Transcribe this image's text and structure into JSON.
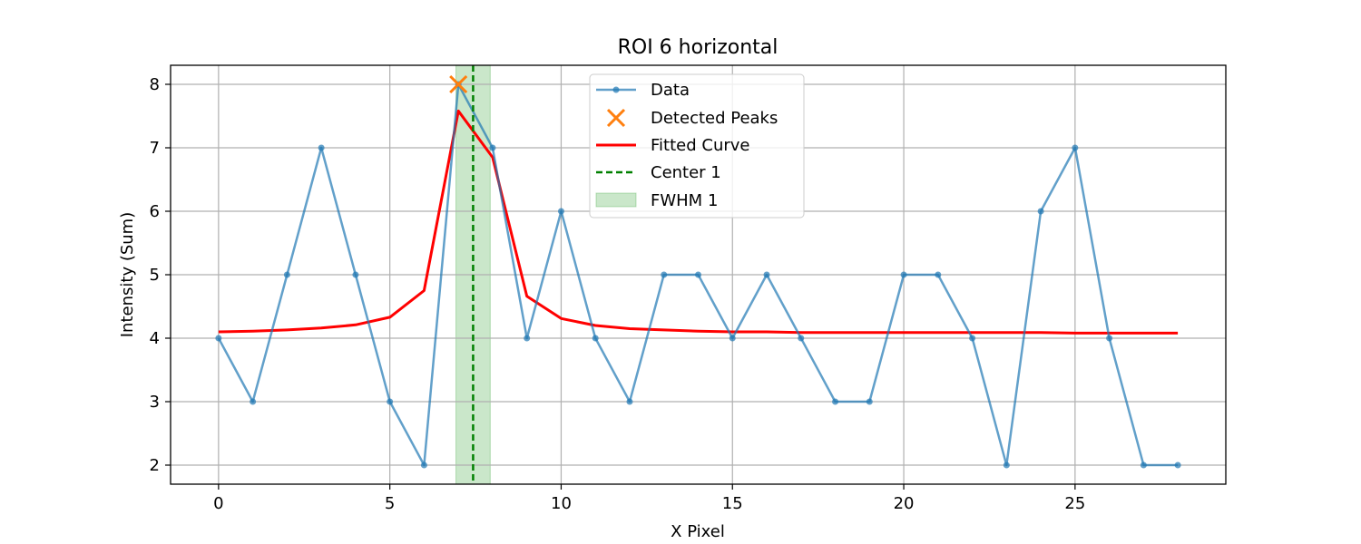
{
  "chart_data": {
    "type": "line",
    "title": "ROI 6 horizontal",
    "xlabel": "X Pixel",
    "ylabel": "Intensity (Sum)",
    "xlim": [
      -1.4,
      29.4
    ],
    "ylim": [
      1.7,
      8.3
    ],
    "xticks": [
      0,
      5,
      10,
      15,
      20,
      25
    ],
    "yticks": [
      2,
      3,
      4,
      5,
      6,
      7,
      8
    ],
    "grid": true,
    "legend_position": "top-center",
    "legend": [
      "Data",
      "Detected Peaks",
      "Fitted Curve",
      "Center 1",
      "FWHM 1"
    ],
    "colors": {
      "data": "#1f77b4",
      "peaks": "#ff7f0e",
      "fit": "#ff0000",
      "center": "#008000",
      "fwhm": "#2ca02c"
    },
    "series": [
      {
        "name": "Data",
        "x": [
          0,
          1,
          2,
          3,
          4,
          5,
          6,
          7,
          8,
          9,
          10,
          11,
          12,
          13,
          14,
          15,
          16,
          17,
          18,
          19,
          20,
          21,
          22,
          23,
          24,
          25,
          26,
          27,
          28
        ],
        "y": [
          4,
          3,
          5,
          7,
          5,
          3,
          2,
          8,
          7,
          4,
          6,
          4,
          3,
          5,
          5,
          4,
          5,
          4,
          3,
          3,
          5,
          5,
          4,
          2,
          6,
          7,
          4,
          2,
          2
        ]
      },
      {
        "name": "Detected Peaks",
        "x": [
          7
        ],
        "y": [
          8
        ]
      },
      {
        "name": "Fitted Curve",
        "x": [
          0,
          1,
          2,
          3,
          4,
          5,
          6,
          7,
          8,
          9,
          10,
          11,
          12,
          13,
          14,
          15,
          16,
          17,
          18,
          19,
          20,
          21,
          22,
          23,
          24,
          25,
          26,
          27,
          28
        ],
        "y": [
          4.1,
          4.11,
          4.13,
          4.16,
          4.21,
          4.33,
          4.75,
          7.58,
          6.85,
          4.66,
          4.31,
          4.2,
          4.15,
          4.13,
          4.11,
          4.1,
          4.1,
          4.09,
          4.09,
          4.09,
          4.09,
          4.09,
          4.09,
          4.09,
          4.09,
          4.08,
          4.08,
          4.08,
          4.08
        ]
      },
      {
        "name": "Center 1",
        "x": 7.43
      },
      {
        "name": "FWHM 1",
        "x_range": [
          6.93,
          7.93
        ]
      }
    ]
  }
}
